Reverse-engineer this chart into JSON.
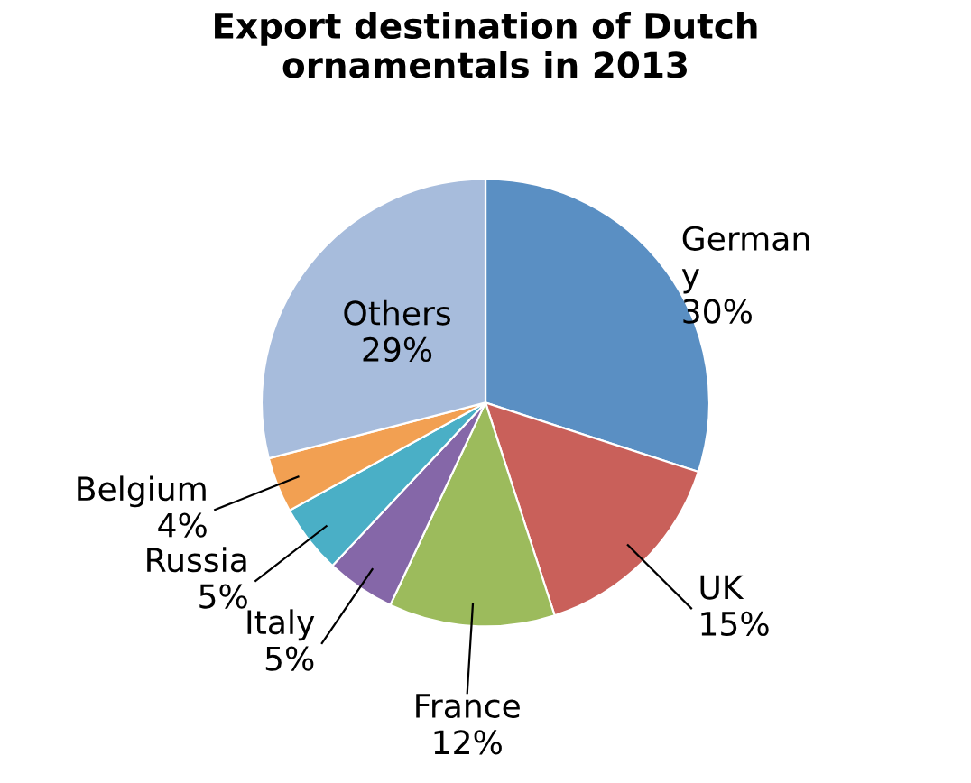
{
  "chart_data": {
    "type": "pie",
    "title": "Export destination of Dutch\nornamentals in 2013",
    "categories": [
      "German\ny",
      "UK",
      "France",
      "Italy",
      "Russia",
      "Belgium",
      "Others"
    ],
    "values": [
      30,
      15,
      12,
      5,
      5,
      4,
      29
    ],
    "colors": [
      "#5a8fc3",
      "#c9605a",
      "#9cbb5c",
      "#8567a8",
      "#4aafc6",
      "#f2a052",
      "#a7bcdc"
    ],
    "value_labels": [
      "30%",
      "15%",
      "12%",
      "5%",
      "5%",
      "4%",
      "29%"
    ],
    "legend": false
  }
}
